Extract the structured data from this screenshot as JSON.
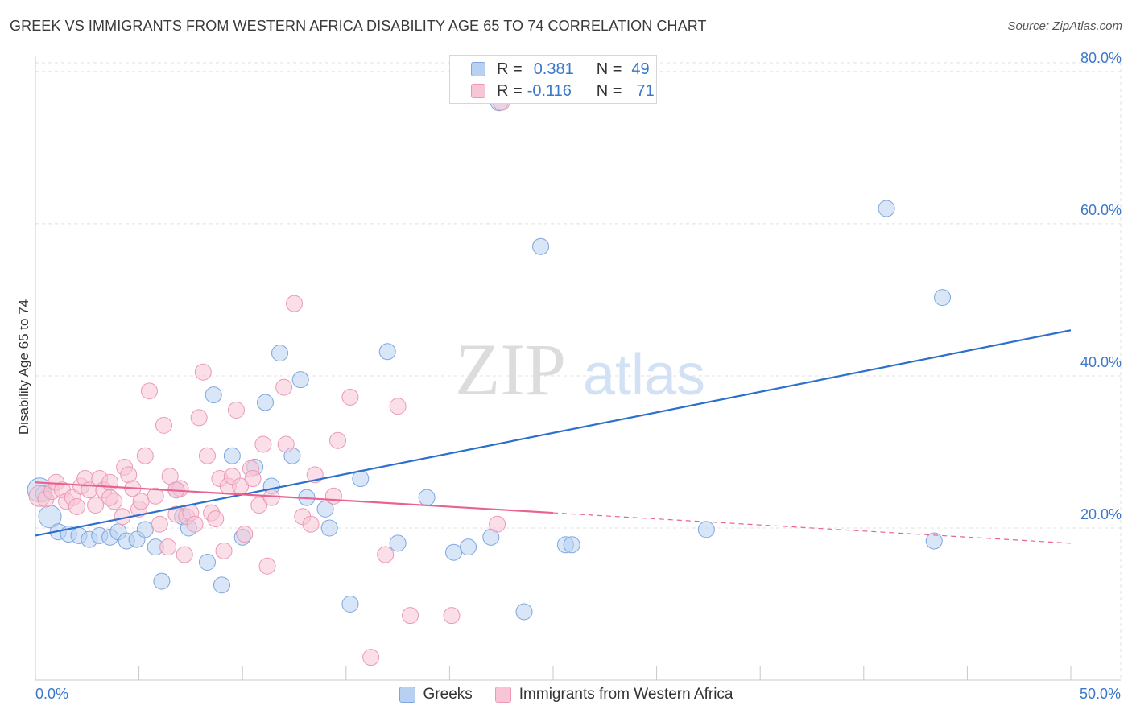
{
  "header": {
    "title": "GREEK VS IMMIGRANTS FROM WESTERN AFRICA DISABILITY AGE 65 TO 74 CORRELATION CHART",
    "source": "Source: ZipAtlas.com"
  },
  "watermark": {
    "part1": "ZIP",
    "part2": "atlas"
  },
  "legend": {
    "items": [
      {
        "r_label": "R =",
        "r_value": "0.381",
        "n_label": "N =",
        "n_value": "49"
      },
      {
        "r_label": "R =",
        "r_value": "-0.116",
        "n_label": "N =",
        "n_value": "71"
      }
    ]
  },
  "bottom_legend": [
    "Greeks",
    "Immigrants from Western Africa"
  ],
  "axes": {
    "x_min_label": "0.0%",
    "x_max_label": "50.0%",
    "y_title": "Disability Age 65 to 74",
    "y_ticks": [
      "20.0%",
      "40.0%",
      "60.0%",
      "80.0%"
    ]
  },
  "colors": {
    "greeks_fill": "#b8d1f2",
    "greeks_stroke": "#7fa6dc",
    "greeks_line": "#2c6fcc",
    "wa_fill": "#f8c5d6",
    "wa_stroke": "#ec98b5",
    "wa_line": "#e8638e",
    "value_text": "#3a78c9",
    "grid": "#e0e0e0"
  },
  "chart_data": {
    "type": "scatter",
    "xlim": [
      0,
      50
    ],
    "ylim": [
      0,
      82
    ],
    "y_grid": [
      20,
      40,
      60,
      80
    ],
    "grid": true,
    "legend_position": "top-center",
    "series": [
      {
        "name": "Greeks",
        "r": 0.381,
        "n": 49,
        "trend": {
          "x": [
            0,
            50
          ],
          "y": [
            19.0,
            46.0
          ],
          "dashed_from": null
        },
        "points": [
          [
            0.2,
            25.0,
            22
          ],
          [
            0.7,
            21.5,
            20
          ],
          [
            1.1,
            19.5,
            12
          ],
          [
            1.6,
            19.2,
            12
          ],
          [
            2.1,
            19.0,
            12
          ],
          [
            2.6,
            18.5,
            12
          ],
          [
            3.1,
            19.0,
            12
          ],
          [
            3.6,
            18.8,
            12
          ],
          [
            4.0,
            19.5,
            12
          ],
          [
            4.4,
            18.3,
            12
          ],
          [
            4.9,
            18.5,
            12
          ],
          [
            5.3,
            19.8,
            12
          ],
          [
            5.8,
            17.5,
            12
          ],
          [
            6.1,
            13.0,
            12
          ],
          [
            6.8,
            25.0,
            12
          ],
          [
            7.1,
            21.5,
            12
          ],
          [
            7.4,
            20.0,
            12
          ],
          [
            8.3,
            15.5,
            12
          ],
          [
            8.6,
            37.5,
            12
          ],
          [
            9.0,
            12.5,
            12
          ],
          [
            9.5,
            29.5,
            12
          ],
          [
            10.0,
            18.8,
            12
          ],
          [
            10.6,
            28.0,
            12
          ],
          [
            11.1,
            36.5,
            12
          ],
          [
            11.4,
            25.5,
            12
          ],
          [
            11.8,
            43.0,
            12
          ],
          [
            12.4,
            29.5,
            12
          ],
          [
            12.8,
            39.5,
            12
          ],
          [
            13.1,
            24.0,
            12
          ],
          [
            14.0,
            22.5,
            12
          ],
          [
            14.2,
            20.0,
            12
          ],
          [
            15.2,
            10.0,
            12
          ],
          [
            15.7,
            26.5,
            12
          ],
          [
            17.0,
            43.2,
            12
          ],
          [
            17.5,
            18.0,
            12
          ],
          [
            18.9,
            24.0,
            12
          ],
          [
            20.2,
            16.8,
            12
          ],
          [
            20.9,
            17.5,
            12
          ],
          [
            22.0,
            18.8,
            12
          ],
          [
            22.4,
            76.0,
            14
          ],
          [
            23.6,
            9.0,
            12
          ],
          [
            24.4,
            57.0,
            12
          ],
          [
            25.6,
            17.8,
            12
          ],
          [
            25.9,
            17.8,
            12
          ],
          [
            32.4,
            19.8,
            12
          ],
          [
            41.1,
            62.0,
            12
          ],
          [
            43.4,
            18.3,
            12
          ],
          [
            43.8,
            50.3,
            12
          ],
          [
            0.4,
            24.5,
            12
          ]
        ]
      },
      {
        "name": "Immigrants from Western Africa",
        "r": -0.116,
        "n": 71,
        "trend": {
          "x": [
            0,
            50
          ],
          "y": [
            26.0,
            18.0
          ],
          "dashed_from": 25.0
        },
        "points": [
          [
            0.2,
            24.2,
            18
          ],
          [
            0.5,
            23.8,
            12
          ],
          [
            0.8,
            24.8,
            12
          ],
          [
            1.0,
            26.0,
            12
          ],
          [
            1.3,
            25.0,
            12
          ],
          [
            1.5,
            23.5,
            12
          ],
          [
            1.8,
            24.0,
            12
          ],
          [
            2.0,
            22.8,
            12
          ],
          [
            2.2,
            25.5,
            12
          ],
          [
            2.4,
            26.5,
            12
          ],
          [
            2.6,
            25.0,
            12
          ],
          [
            2.9,
            23.0,
            12
          ],
          [
            3.1,
            26.5,
            12
          ],
          [
            3.3,
            25.0,
            12
          ],
          [
            3.6,
            26.0,
            12
          ],
          [
            3.8,
            23.5,
            12
          ],
          [
            3.6,
            24.0,
            12
          ],
          [
            4.2,
            21.5,
            12
          ],
          [
            4.3,
            28.0,
            12
          ],
          [
            4.5,
            27.0,
            12
          ],
          [
            4.7,
            25.2,
            12
          ],
          [
            5.0,
            22.5,
            12
          ],
          [
            5.1,
            23.5,
            12
          ],
          [
            5.3,
            29.5,
            12
          ],
          [
            5.5,
            38.0,
            12
          ],
          [
            5.8,
            24.2,
            12
          ],
          [
            6.0,
            20.5,
            12
          ],
          [
            6.2,
            33.5,
            12
          ],
          [
            6.4,
            17.5,
            12
          ],
          [
            6.5,
            26.8,
            12
          ],
          [
            6.8,
            21.8,
            12
          ],
          [
            7.0,
            25.2,
            12
          ],
          [
            7.2,
            16.5,
            12
          ],
          [
            7.3,
            21.5,
            12
          ],
          [
            7.5,
            22.0,
            12
          ],
          [
            7.7,
            20.5,
            12
          ],
          [
            7.9,
            34.5,
            12
          ],
          [
            8.1,
            40.5,
            12
          ],
          [
            8.3,
            29.5,
            12
          ],
          [
            8.5,
            22.0,
            12
          ],
          [
            8.7,
            21.2,
            12
          ],
          [
            8.9,
            26.5,
            12
          ],
          [
            9.1,
            17.0,
            12
          ],
          [
            9.3,
            25.5,
            12
          ],
          [
            9.5,
            26.8,
            12
          ],
          [
            9.7,
            35.5,
            12
          ],
          [
            9.9,
            25.5,
            12
          ],
          [
            10.1,
            19.2,
            12
          ],
          [
            10.4,
            27.8,
            12
          ],
          [
            10.5,
            26.5,
            12
          ],
          [
            10.8,
            23.0,
            12
          ],
          [
            11.0,
            31.0,
            12
          ],
          [
            11.2,
            15.0,
            12
          ],
          [
            11.4,
            24.0,
            12
          ],
          [
            12.0,
            38.5,
            12
          ],
          [
            12.1,
            31.0,
            12
          ],
          [
            12.5,
            49.5,
            12
          ],
          [
            12.9,
            21.5,
            12
          ],
          [
            13.3,
            20.5,
            12
          ],
          [
            13.5,
            27.0,
            12
          ],
          [
            14.4,
            24.2,
            12
          ],
          [
            14.6,
            31.5,
            12
          ],
          [
            15.2,
            37.2,
            12
          ],
          [
            16.2,
            3.0,
            12
          ],
          [
            16.9,
            16.5,
            12
          ],
          [
            17.5,
            36.0,
            12
          ],
          [
            18.1,
            8.5,
            12
          ],
          [
            20.1,
            8.5,
            12
          ],
          [
            22.3,
            20.5,
            12
          ],
          [
            22.5,
            76.0,
            13
          ],
          [
            6.8,
            25.0,
            12
          ]
        ]
      }
    ]
  }
}
